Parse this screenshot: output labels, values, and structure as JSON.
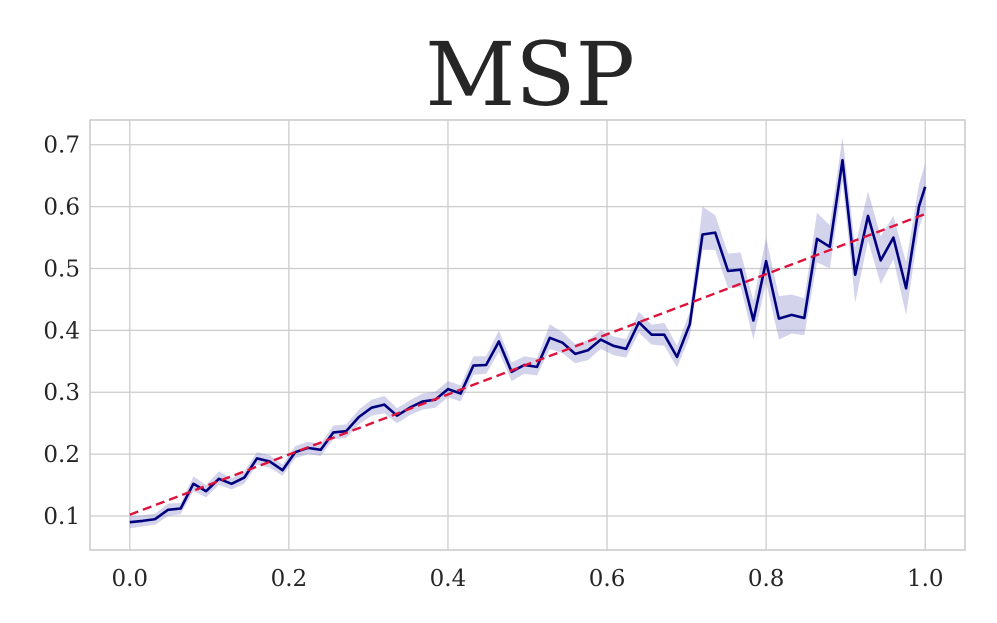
{
  "chart_data": {
    "type": "line",
    "title": "MSP",
    "xlabel": "",
    "ylabel": "",
    "xlim": [
      -0.05,
      1.05
    ],
    "ylim": [
      0.045,
      0.74
    ],
    "xticks": [
      0.0,
      0.2,
      0.4,
      0.6,
      0.8,
      1.0
    ],
    "xtick_labels": [
      "0.0",
      "0.2",
      "0.4",
      "0.6",
      "0.8",
      "1.0"
    ],
    "yticks": [
      0.1,
      0.2,
      0.3,
      0.4,
      0.5,
      0.6,
      0.7
    ],
    "ytick_labels": [
      "0.1",
      "0.2",
      "0.3",
      "0.4",
      "0.5",
      "0.6",
      "0.7"
    ],
    "grid": true,
    "legend": "none",
    "series": [
      {
        "style": "solid",
        "color": "#00007f",
        "band_color": "#8080c8",
        "x": [
          0.0,
          0.016,
          0.032,
          0.048,
          0.064,
          0.08,
          0.096,
          0.112,
          0.128,
          0.144,
          0.16,
          0.176,
          0.192,
          0.208,
          0.224,
          0.24,
          0.256,
          0.272,
          0.288,
          0.304,
          0.32,
          0.336,
          0.352,
          0.368,
          0.384,
          0.4,
          0.416,
          0.432,
          0.448,
          0.464,
          0.48,
          0.496,
          0.512,
          0.528,
          0.544,
          0.56,
          0.576,
          0.592,
          0.608,
          0.624,
          0.64,
          0.656,
          0.672,
          0.688,
          0.704,
          0.72,
          0.736,
          0.752,
          0.768,
          0.784,
          0.8,
          0.816,
          0.832,
          0.848,
          0.864,
          0.88,
          0.896,
          0.912,
          0.928,
          0.944,
          0.96,
          0.976,
          0.992,
          1.0
        ],
        "y": [
          0.09,
          0.092,
          0.095,
          0.11,
          0.112,
          0.152,
          0.14,
          0.16,
          0.152,
          0.162,
          0.193,
          0.188,
          0.174,
          0.203,
          0.21,
          0.207,
          0.235,
          0.237,
          0.26,
          0.275,
          0.28,
          0.262,
          0.275,
          0.285,
          0.288,
          0.305,
          0.298,
          0.343,
          0.344,
          0.382,
          0.333,
          0.344,
          0.341,
          0.388,
          0.38,
          0.362,
          0.368,
          0.385,
          0.375,
          0.37,
          0.413,
          0.393,
          0.393,
          0.357,
          0.41,
          0.555,
          0.558,
          0.496,
          0.498,
          0.416,
          0.512,
          0.419,
          0.425,
          0.42,
          0.548,
          0.535,
          0.675,
          0.49,
          0.585,
          0.513,
          0.55,
          0.468,
          0.6,
          0.632
        ],
        "lower": [
          0.08,
          0.083,
          0.086,
          0.1,
          0.103,
          0.14,
          0.13,
          0.15,
          0.143,
          0.152,
          0.183,
          0.178,
          0.165,
          0.193,
          0.2,
          0.197,
          0.224,
          0.226,
          0.248,
          0.262,
          0.266,
          0.25,
          0.263,
          0.272,
          0.275,
          0.292,
          0.285,
          0.328,
          0.33,
          0.365,
          0.318,
          0.33,
          0.327,
          0.37,
          0.363,
          0.347,
          0.352,
          0.37,
          0.36,
          0.356,
          0.396,
          0.377,
          0.375,
          0.34,
          0.39,
          0.53,
          0.53,
          0.468,
          0.47,
          0.385,
          0.478,
          0.385,
          0.395,
          0.392,
          0.51,
          0.5,
          0.64,
          0.445,
          0.545,
          0.475,
          0.515,
          0.425,
          0.565,
          0.595
        ],
        "upper": [
          0.1,
          0.101,
          0.104,
          0.12,
          0.121,
          0.164,
          0.15,
          0.172,
          0.161,
          0.172,
          0.203,
          0.198,
          0.183,
          0.213,
          0.22,
          0.217,
          0.246,
          0.248,
          0.272,
          0.288,
          0.294,
          0.274,
          0.287,
          0.298,
          0.301,
          0.318,
          0.311,
          0.358,
          0.358,
          0.4,
          0.348,
          0.358,
          0.355,
          0.41,
          0.397,
          0.378,
          0.384,
          0.4,
          0.39,
          0.386,
          0.43,
          0.409,
          0.412,
          0.375,
          0.43,
          0.6,
          0.586,
          0.524,
          0.526,
          0.448,
          0.55,
          0.455,
          0.458,
          0.452,
          0.59,
          0.57,
          0.712,
          0.535,
          0.625,
          0.552,
          0.585,
          0.51,
          0.635,
          0.67
        ]
      },
      {
        "style": "dashed",
        "color": "#dc143c",
        "x": [
          0.0,
          1.0
        ],
        "y": [
          0.102,
          0.588
        ]
      }
    ]
  }
}
